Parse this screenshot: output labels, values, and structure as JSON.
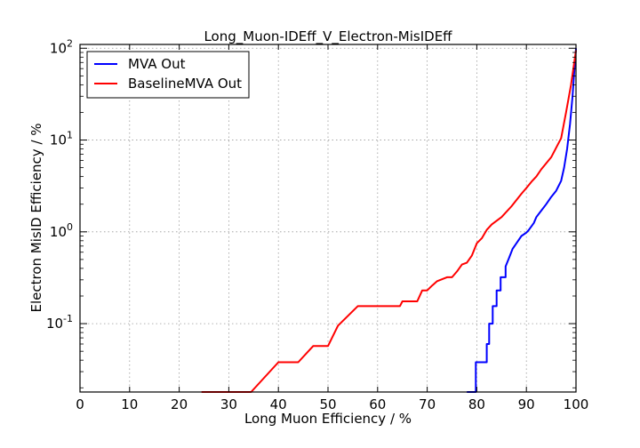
{
  "chart_data": {
    "type": "line",
    "title": "Long_Muon-IDEff_V_Electron-MisIDEff",
    "xlabel": "Long Muon Efficiency / %",
    "ylabel": "Electron MisID Efficiency / %",
    "xlim": [
      0,
      100
    ],
    "ylim": [
      0.018,
      110
    ],
    "yscale": "log",
    "grid": true,
    "legend_position": "top-left",
    "x_ticks": [
      "0",
      "10",
      "20",
      "30",
      "40",
      "50",
      "60",
      "70",
      "80",
      "90",
      "100"
    ],
    "x_tick_values": [
      0,
      10,
      20,
      30,
      40,
      50,
      60,
      70,
      80,
      90,
      100
    ],
    "y_ticks": [
      {
        "base": "10",
        "exp": "-1",
        "value": 0.1
      },
      {
        "base": "10",
        "exp": "0",
        "value": 1
      },
      {
        "base": "10",
        "exp": "1",
        "value": 10
      },
      {
        "base": "10",
        "exp": "2",
        "value": 100
      }
    ],
    "series": [
      {
        "name": "MVA Out",
        "color": "#0000ff",
        "x": [
          78,
          79.8,
          79.8,
          82,
          82,
          82.5,
          82.5,
          83.2,
          83.2,
          84,
          84,
          84.8,
          84.8,
          85.8,
          85.8,
          86.5,
          87.2,
          88,
          89,
          90,
          90.5,
          91.5,
          92,
          93,
          94,
          95,
          96,
          97,
          97.6,
          98.2,
          98.8,
          99.3,
          99.7,
          100
        ],
        "y": [
          0.018,
          0.018,
          0.038,
          0.038,
          0.06,
          0.06,
          0.1,
          0.1,
          0.155,
          0.155,
          0.23,
          0.23,
          0.32,
          0.32,
          0.42,
          0.52,
          0.65,
          0.75,
          0.9,
          0.98,
          1.05,
          1.25,
          1.45,
          1.7,
          2.0,
          2.4,
          2.8,
          3.6,
          5.0,
          8.0,
          15,
          30,
          60,
          100
        ]
      },
      {
        "name": "BaselineMVA Out",
        "color": "#ff0000",
        "x": [
          24.5,
          34.5,
          40,
          44,
          47,
          50,
          52,
          56,
          64.5,
          65,
          68,
          69,
          70,
          71,
          72,
          74,
          75,
          76,
          77,
          78,
          79,
          80,
          81,
          82,
          83,
          85,
          87,
          89,
          90,
          91,
          92,
          93,
          95,
          97,
          98,
          99,
          100
        ],
        "y": [
          0.018,
          0.018,
          0.038,
          0.038,
          0.057,
          0.057,
          0.095,
          0.155,
          0.155,
          0.175,
          0.175,
          0.23,
          0.23,
          0.26,
          0.29,
          0.32,
          0.32,
          0.37,
          0.44,
          0.46,
          0.55,
          0.75,
          0.85,
          1.05,
          1.2,
          1.45,
          1.9,
          2.6,
          3.0,
          3.5,
          4.0,
          4.8,
          6.5,
          10.5,
          20,
          40,
          95
        ]
      }
    ]
  }
}
